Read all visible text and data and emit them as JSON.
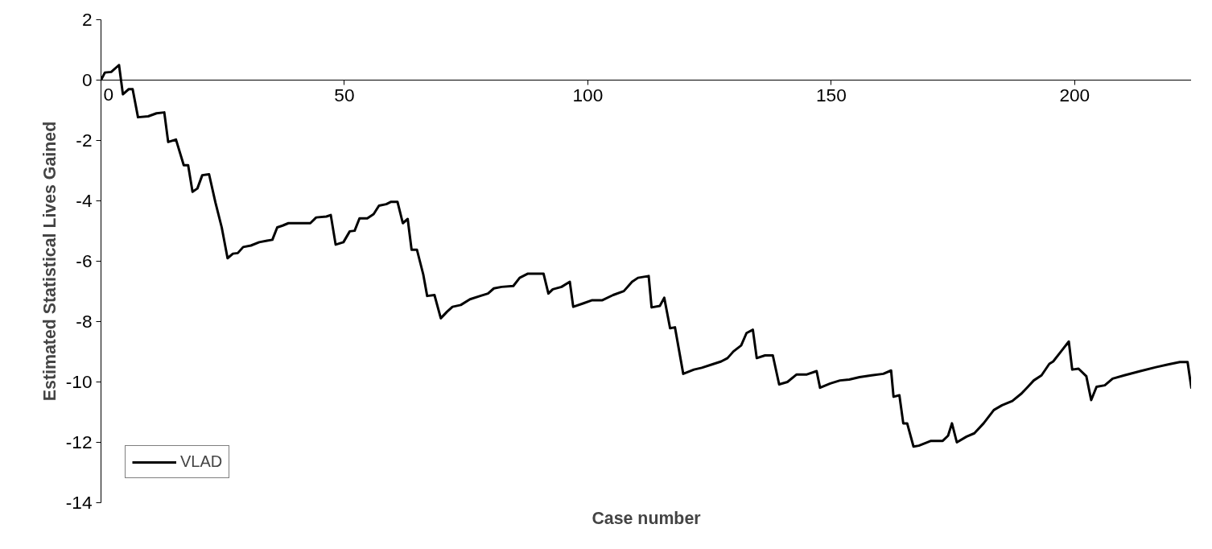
{
  "chart_data": {
    "type": "line",
    "xlabel": "Case number",
    "ylabel": "Estimated Statistical Lives Gained",
    "xlim": [
      0,
      224
    ],
    "xticks": [
      0,
      50,
      100,
      150,
      200
    ],
    "ylim": [
      -14,
      2
    ],
    "yticks": [
      -14,
      -12,
      -10,
      -8,
      -6,
      -4,
      -2,
      0,
      2
    ],
    "grid": false,
    "legend": "bottom left",
    "marker": "none",
    "line_style": "solid",
    "series": [
      {
        "name": "VLAD",
        "color": "#000000",
        "x": [
          0,
          0.8,
          2.1,
          3.7,
          4.5,
          5.7,
          6.5,
          7.6,
          9.7,
          11.4,
          13,
          13.8,
          15.4,
          17,
          17.9,
          18.8,
          19.8,
          20.8,
          22.2,
          23.5,
          24.8,
          26,
          27.1,
          28.1,
          29.2,
          30.8,
          32.5,
          34.1,
          35.2,
          36.2,
          37.3,
          38.5,
          43,
          44.2,
          46.3,
          47.2,
          48.2,
          49.8,
          51.1,
          52.1,
          53.1,
          54.7,
          56,
          57.1,
          58.6,
          59.6,
          60.9,
          62,
          63,
          63.8,
          64.9,
          66.2,
          67,
          68.5,
          69.8,
          71.1,
          72.2,
          73.9,
          75.8,
          77.9,
          79.5,
          80.7,
          82.3,
          84.7,
          86,
          87.7,
          90.9,
          91.9,
          92.8,
          94.6,
          96.3,
          97,
          99,
          100.9,
          103,
          105.2,
          107.4,
          109.1,
          110.3,
          112.5,
          113.1,
          114.8,
          115.7,
          116.9,
          117.9,
          119.6,
          121.8,
          123.4,
          125.5,
          127.4,
          128.7,
          129.9,
          131.5,
          132.6,
          133.9,
          134.7,
          136.4,
          138,
          139.3,
          141,
          142.9,
          145,
          147,
          147.7,
          149.8,
          151.8,
          153.7,
          155.8,
          158.3,
          160.7,
          162.3,
          162.8,
          164,
          164.8,
          165.6,
          166.9,
          168,
          170.5,
          172.9,
          174,
          174.8,
          175.8,
          177.8,
          179.4,
          181.3,
          183.4,
          185.1,
          187.2,
          189.1,
          190.4,
          191.6,
          193.2,
          194.8,
          195.6,
          197.2,
          198.8,
          199.5,
          200.8,
          202.4,
          203.4,
          204.5,
          206.2,
          207.8,
          210.2,
          213.5,
          216.7,
          219.2,
          221.6,
          223.2,
          224
        ],
        "values": [
          0,
          0.25,
          0.27,
          0.5,
          -0.47,
          -0.3,
          -0.3,
          -1.23,
          -1.2,
          -1.1,
          -1.07,
          -2.05,
          -1.97,
          -2.82,
          -2.82,
          -3.7,
          -3.59,
          -3.15,
          -3.12,
          -4.05,
          -4.88,
          -5.9,
          -5.75,
          -5.73,
          -5.53,
          -5.48,
          -5.37,
          -5.32,
          -5.29,
          -4.88,
          -4.82,
          -4.74,
          -4.74,
          -4.55,
          -4.52,
          -4.47,
          -5.45,
          -5.37,
          -5.01,
          -4.99,
          -4.58,
          -4.58,
          -4.44,
          -4.16,
          -4.11,
          -4.03,
          -4.03,
          -4.74,
          -4.6,
          -5.62,
          -5.62,
          -6.44,
          -7.15,
          -7.12,
          -7.89,
          -7.67,
          -7.51,
          -7.45,
          -7.26,
          -7.15,
          -7.07,
          -6.9,
          -6.85,
          -6.82,
          -6.55,
          -6.41,
          -6.41,
          -7.07,
          -6.93,
          -6.85,
          -6.68,
          -7.51,
          -7.4,
          -7.29,
          -7.29,
          -7.12,
          -6.99,
          -6.68,
          -6.55,
          -6.49,
          -7.53,
          -7.48,
          -7.21,
          -8.22,
          -8.19,
          -9.73,
          -9.59,
          -9.53,
          -9.42,
          -9.32,
          -9.21,
          -8.99,
          -8.79,
          -8.38,
          -8.27,
          -9.21,
          -9.12,
          -9.12,
          -10.08,
          -10,
          -9.75,
          -9.75,
          -9.64,
          -10.19,
          -10.05,
          -9.95,
          -9.92,
          -9.84,
          -9.78,
          -9.73,
          -9.62,
          -10.49,
          -10.44,
          -11.37,
          -11.37,
          -12.14,
          -12.11,
          -11.95,
          -11.95,
          -11.78,
          -11.37,
          -12,
          -11.81,
          -11.7,
          -11.37,
          -10.93,
          -10.77,
          -10.63,
          -10.38,
          -10.16,
          -9.95,
          -9.78,
          -9.4,
          -9.32,
          -8.99,
          -8.66,
          -9.59,
          -9.56,
          -9.81,
          -10.6,
          -10.16,
          -10.11,
          -9.89,
          -9.78,
          -9.64,
          -9.51,
          -9.42,
          -9.34,
          -9.34,
          -10.22
        ]
      }
    ]
  }
}
